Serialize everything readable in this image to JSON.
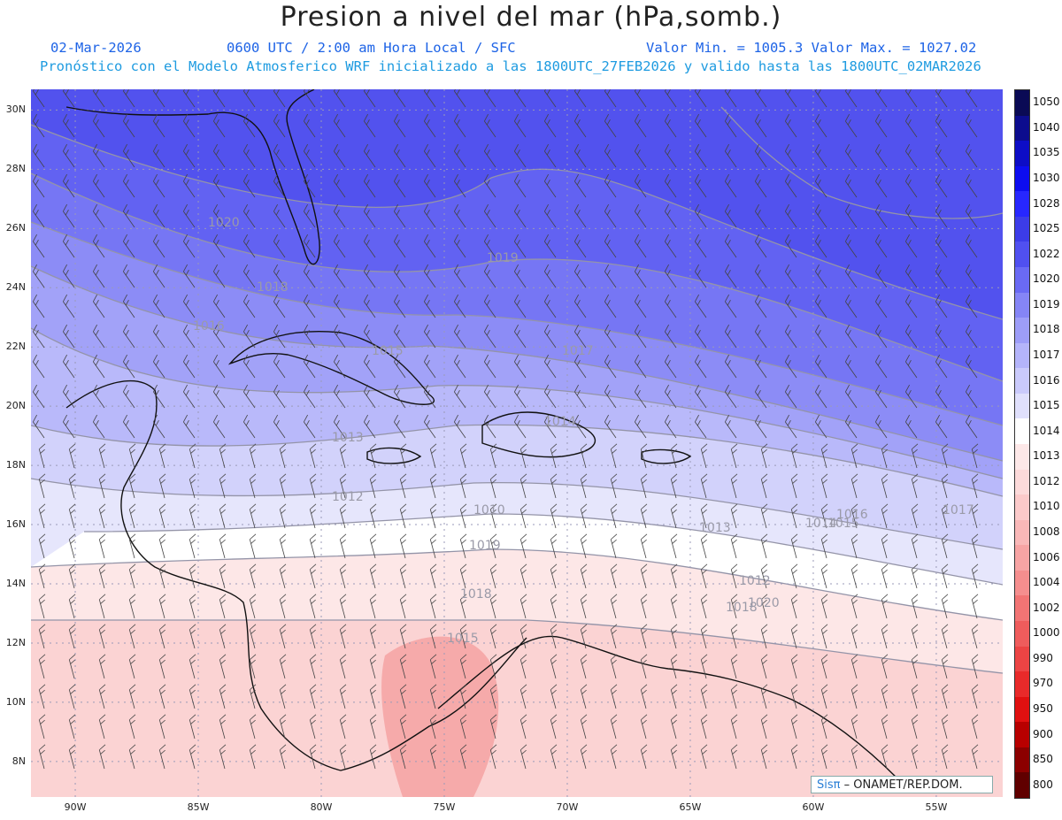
{
  "title": "Presion a nivel del mar (hPa,somb.)",
  "header": {
    "date": "02-Mar-2026",
    "time": "0600 UTC / 2:00 am Hora Local / SFC",
    "minmax": "Valor Min. = 1005.3  Valor Max. = 1027.02",
    "model": "Pronóstico con el Modelo Atmosferico WRF inicializado a las 1800UTC_27FEB2026 y valido hasta las  1800UTC_02MAR2026"
  },
  "map": {
    "lon_range": [
      -91.8,
      -52.3
    ],
    "lat_range": [
      6.8,
      30.7
    ],
    "lon_ticks": [
      "90W",
      "85W",
      "80W",
      "75W",
      "70W",
      "65W",
      "60W",
      "55W"
    ],
    "lat_ticks": [
      "30N",
      "28N",
      "26N",
      "24N",
      "22N",
      "20N",
      "18N",
      "16N",
      "14N",
      "12N",
      "10N",
      "8N"
    ],
    "grid": true,
    "contour_labels": [
      "1020",
      "1019",
      "1018",
      "1017",
      "1016",
      "1015",
      "1014",
      "1013",
      "1012",
      "1010",
      "1019",
      "1018",
      "1015",
      "1014",
      "1013",
      "1012",
      "1020",
      "1018",
      "1017",
      "1016",
      "1015"
    ]
  },
  "colorbar": {
    "labels": [
      "1050",
      "1040",
      "1035",
      "1030",
      "1028",
      "1025",
      "1022",
      "1020",
      "1019",
      "1018",
      "1017",
      "1016",
      "1015",
      "1014",
      "1013",
      "1012",
      "1010",
      "1008",
      "1006",
      "1004",
      "1002",
      "1000",
      "990",
      "970",
      "950",
      "900",
      "850",
      "800"
    ],
    "colors": [
      "#0a0a55",
      "#0c0c8e",
      "#0d0dc6",
      "#0d0df0",
      "#2727ff",
      "#3c3ce8",
      "#5050f0",
      "#6a6af4",
      "#8585f6",
      "#9d9df8",
      "#b4b4fa",
      "#cacafb",
      "#e0e0fc",
      "#ffffff",
      "#fde8e8",
      "#fcdada",
      "#fbcaca",
      "#f9b8b8",
      "#f7a4a4",
      "#f58e8e",
      "#f27474",
      "#ef5c5c",
      "#ec4444",
      "#e82a2a",
      "#e01010",
      "#b80000",
      "#8c0000",
      "#600000"
    ]
  },
  "credit": {
    "sis": "Sisπ",
    "org": " – ONAMET/REP.DOM."
  }
}
